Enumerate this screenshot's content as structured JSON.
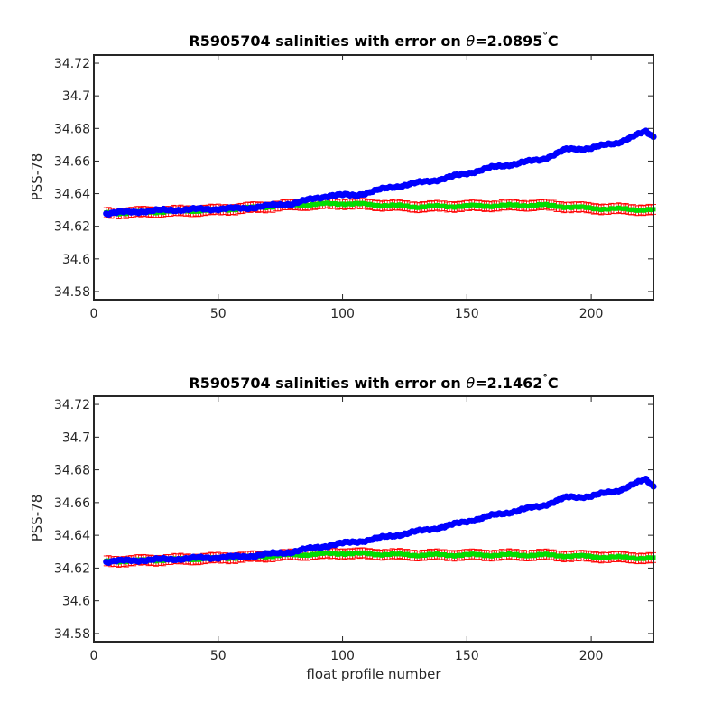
{
  "chart_data": [
    {
      "type": "scatter",
      "title_prefix": "R5905704 salinities with error on ",
      "theta_symbol": "θ",
      "title_value": "=2.0895",
      "degree_symbol": "°",
      "title_unit": "C",
      "ylabel": "PSS-78",
      "xlabel": "",
      "xlim": [
        0,
        225
      ],
      "ylim": [
        34.575,
        34.725
      ],
      "xticks": [
        0,
        50,
        100,
        150,
        200
      ],
      "yticks": [
        34.58,
        34.6,
        34.62,
        34.64,
        34.66,
        34.68,
        34.7,
        34.72
      ],
      "ytick_labels": [
        "34.58",
        "34.6",
        "34.62",
        "34.64",
        "34.66",
        "34.68",
        "34.7",
        "34.72"
      ],
      "colors": {
        "raw": "#0000ff",
        "calibrated": "#00dd00",
        "error": "#ff0000"
      },
      "blue_anchors": [
        [
          5,
          34.628
        ],
        [
          30,
          34.63
        ],
        [
          60,
          34.631
        ],
        [
          80,
          34.634
        ],
        [
          95,
          34.639
        ],
        [
          105,
          34.639
        ],
        [
          120,
          34.644
        ],
        [
          140,
          34.649
        ],
        [
          160,
          34.656
        ],
        [
          180,
          34.661
        ],
        [
          190,
          34.667
        ],
        [
          200,
          34.668
        ],
        [
          210,
          34.671
        ],
        [
          222,
          34.678
        ],
        [
          225,
          34.675
        ]
      ],
      "green_anchors": [
        [
          5,
          34.628
        ],
        [
          50,
          34.63
        ],
        [
          80,
          34.633
        ],
        [
          100,
          34.634
        ],
        [
          130,
          34.632
        ],
        [
          180,
          34.633
        ],
        [
          200,
          34.631
        ],
        [
          225,
          34.63
        ]
      ],
      "error_halfwidth": 0.003,
      "profile_range": [
        5,
        225
      ]
    },
    {
      "type": "scatter",
      "title_prefix": "R5905704 salinities with error on ",
      "theta_symbol": "θ",
      "title_value": "=2.1462",
      "degree_symbol": "°",
      "title_unit": "C",
      "ylabel": "PSS-78",
      "xlabel": "float profile number",
      "xlim": [
        0,
        225
      ],
      "ylim": [
        34.575,
        34.725
      ],
      "xticks": [
        0,
        50,
        100,
        150,
        200
      ],
      "yticks": [
        34.58,
        34.6,
        34.62,
        34.64,
        34.66,
        34.68,
        34.7,
        34.72
      ],
      "ytick_labels": [
        "34.58",
        "34.6",
        "34.62",
        "34.64",
        "34.66",
        "34.68",
        "34.7",
        "34.72"
      ],
      "colors": {
        "raw": "#0000ff",
        "calibrated": "#00dd00",
        "error": "#ff0000"
      },
      "blue_anchors": [
        [
          5,
          34.624
        ],
        [
          40,
          34.626
        ],
        [
          60,
          34.627
        ],
        [
          80,
          34.63
        ],
        [
          95,
          34.634
        ],
        [
          110,
          34.637
        ],
        [
          125,
          34.641
        ],
        [
          140,
          34.645
        ],
        [
          160,
          34.652
        ],
        [
          180,
          34.658
        ],
        [
          190,
          34.663
        ],
        [
          200,
          34.664
        ],
        [
          210,
          34.667
        ],
        [
          222,
          34.674
        ],
        [
          225,
          34.67
        ]
      ],
      "green_anchors": [
        [
          5,
          34.624
        ],
        [
          50,
          34.626
        ],
        [
          80,
          34.628
        ],
        [
          100,
          34.629
        ],
        [
          130,
          34.628
        ],
        [
          180,
          34.628
        ],
        [
          200,
          34.627
        ],
        [
          225,
          34.626
        ]
      ],
      "error_halfwidth": 0.003,
      "profile_range": [
        5,
        225
      ]
    }
  ]
}
